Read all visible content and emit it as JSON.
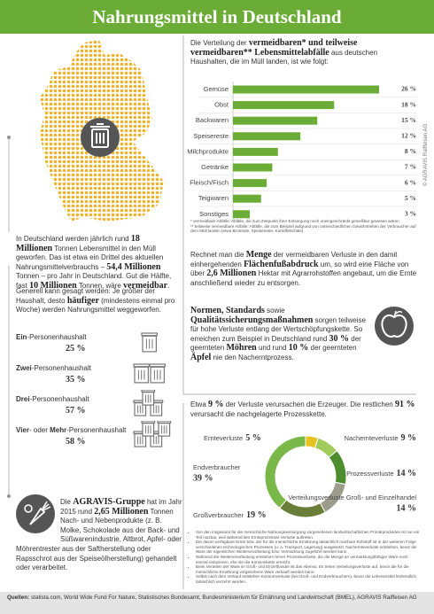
{
  "header": {
    "title": "Nahrungsmittel in Deutschland",
    "credit": "© AGRAVIS Raiffeisen AG"
  },
  "intro": [
    "Die Verteilung der ",
    {
      "text": "vermeidbaren* und teilweise vermeidbaren** Lebensmittelabfälle",
      "bold": true
    },
    " aus deutschen Haushalten, die im Müll landen, ist wie folgt:"
  ],
  "chart_data": [
    {
      "type": "bar",
      "orientation": "horizontal",
      "color": "#6aac35",
      "categories": [
        "Gemüse",
        "Obst",
        "Backwaren",
        "Speisereste",
        "Milchprodukte",
        "Getränke",
        "Fleisch/Fisch",
        "Teigwaren",
        "Sonstiges"
      ],
      "values": [
        26,
        18,
        15,
        12,
        8,
        7,
        6,
        5,
        3
      ],
      "value_labels": [
        "26 %",
        "18 %",
        "15 %",
        "12 %",
        "8 %",
        "7 %",
        "6 %",
        "5 %",
        "3 %"
      ]
    },
    {
      "type": "donut",
      "categories": [
        "Ernteverluste",
        "Nachernteverluste",
        "Prozessverluste",
        "Verteilungsverluste Groß- und Einzelhandel",
        "Großverbraucher",
        "Endverbraucher"
      ],
      "values": [
        5,
        9,
        14,
        14,
        19,
        39
      ],
      "value_labels": [
        "5 %",
        "9 %",
        "14 %",
        "14 %",
        "19 %",
        "39 %"
      ],
      "colors": [
        "#e6c31f",
        "#a2cb5c",
        "#4e8d2e",
        "#9d9d8d",
        "#6b7e39",
        "#7bb84a"
      ]
    }
  ],
  "footnotes": [
    "* vermeidbare Abfälle: Abfälle, die zum Zeitpunkt ihrer Entsorgung noch uneingeschränkt genießbar gewesen wären",
    "** teilweise vermeidbare Abfälle: Abfälle, die zum Beispiel aufgrund von unterschiedlichen Gewohnheiten der Verbraucher auf dem Müll landen (etwa Brotrinde, Speisereste, Kartoffelschäle)"
  ],
  "paragraphs": [
    [
      "In Deutschland werden jährlich rund ",
      {
        "text": "18 Millionen",
        "bold": true
      },
      " Tonnen Lebensmittel in den Müll geworfen. Das ist etwa ein Drittel des aktuellen Nahrungsmittelverbrauchs – ",
      {
        "text": "54,4 Millionen",
        "bold": true
      },
      " Tonnen – pro Jahr in Deutschland. Gut die Hälfte, fast ",
      {
        "text": "10 Millionen",
        "bold": true
      },
      " Tonnen, wäre ",
      {
        "text": "vermeidbar",
        "bold": true
      },
      "."
    ],
    [
      "Rechnet man die ",
      {
        "text": "Menge",
        "bold": true
      },
      " der vermeidbaren Verluste in den damit einhergehenden ",
      {
        "text": "Flächenfußabdruck",
        "bold": true
      },
      " um, so wird eine Fläche von über ",
      {
        "text": "2,6 Millionen",
        "bold": true
      },
      " Hektar mit Agrarrohstoffen angebaut, um die Ernte anschließend wieder zu entsorgen."
    ],
    [
      "Generell kann gesagt werden: Je größer der Haushalt, desto ",
      {
        "text": "häufiger",
        "bold": true
      },
      " (mindestens einmal pro Woche) werden Nahrungsmittel weggeworfen."
    ],
    [
      {
        "text": "Normen, Standards",
        "bold": true
      },
      " sowie ",
      {
        "text": "Qualitätssicherungsmaßnahmen",
        "bold": true
      },
      " sorgen teilweise für hohe Verluste entlang der Wertschöpfungskette. So erreichen zum Beispiel in Deutschland rund ",
      {
        "text": "30 %",
        "bold": true
      },
      " der geernteten ",
      {
        "text": "Möhren",
        "bold": true
      },
      " und rund ",
      {
        "text": "10 %",
        "bold": true
      },
      " der geernteten ",
      {
        "text": "Äpfel",
        "bold": true
      },
      " nie den Nacherntprozess."
    ],
    [
      "Etwa ",
      {
        "text": "9 %",
        "bold": true
      },
      " der Verluste verursachen die Erzeuger. Die restlichen ",
      {
        "text": "91 %",
        "bold": true
      },
      " verursacht die nachgelagerte Prozesskette."
    ],
    [
      "Die ",
      {
        "text": "AGRAVIS-Gruppe",
        "bold": true
      },
      " hat im Jahr 2015 rund ",
      {
        "text": "2,65 Millionen",
        "bold": true
      },
      " Tonnen Nach- und Nebenprodukte (z. B. Molke, Schokolade aus der Back- und Süßwarenindustrie, Altbrot, Apfel- oder Möhrentrester aus der Saftherstellung oder Rapsschrot aus der Speiseölherstellung) gehandelt oder verarbeitet."
    ]
  ],
  "households": [
    {
      "label": [
        {
          "text": "Ein",
          "bold": true
        },
        "-Personenhaushalt"
      ],
      "value": "25 %"
    },
    {
      "label": [
        {
          "text": "Zwei",
          "bold": true
        },
        "-Personenhaushalt"
      ],
      "value": "35 %"
    },
    {
      "label": [
        {
          "text": "Drei",
          "bold": true
        },
        "-Personenhaushalt"
      ],
      "value": "57 %"
    },
    {
      "label": [
        {
          "text": "Vier",
          "bold": true
        },
        "- oder ",
        {
          "text": "Mehr",
          "bold": true
        },
        "-Personenhaushalt"
      ],
      "value": "58 %"
    }
  ],
  "bullets": [
    "Von den insgesamt für die menschliche Nahrungsversorgung vorgesehenen landwirtschaftlichen Primärprodukten ist nur ein Teil nutzbar, weil während des Ernteprozesses Verluste auftreten.",
    "Die davon verfügbare Ernte bzw. der für die menschliche Ernährung tatsächlich nutzbare Rohstoff ist in der weiteren Folge verschiedenen technologischen Prozessen (u. a. Transport, Lagerung) ausgesetzt. Nachernteverluste entstehen, bevor die Ware der eigentlichen Weiterverarbeitung bzw. Vermarktung zugeführt werden kann.",
    "Während der Weiterverarbeitung entstehen ferner Prozessverluste, die die Menge an vermarktungsfähiger Ware noch einmal reduzieren, ehe sie die Konsumkette erreicht.",
    "Beim Verteilen der Ware im Groß- und Einzelhandel ist das ebenso. Es treten Verteilungsverluste auf, bevor die für die menschliche Ernährung vorgesehene Ware verkauft werden kann.",
    "Selbst nach dem Verkauf entstehen Konsumverluste (bei Groß- und Endverbrauchern), bevor die Lebensmittel letztendlich tatsächlich verzehrt werden."
  ],
  "sources": [
    {
      "text": "Quellen:",
      "bold": true
    },
    " statista.com, World Wide Fund For Nature, Statistisches Bundesamt, Bundesministerium für Ernährung und Landwirtschaft (BMEL), AGRAVIS Raiffeisen AG"
  ]
}
